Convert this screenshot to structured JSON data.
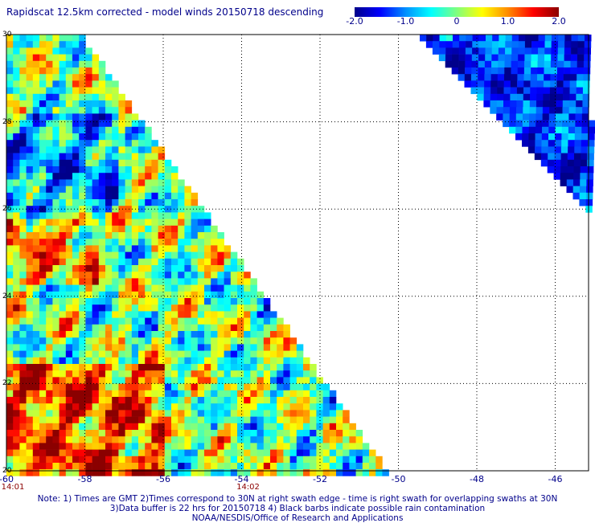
{
  "title": "Rapidscat 12.5km corrected - model winds 20150718 descending",
  "colorbar": {
    "min": -2.0,
    "max": 2.0,
    "tick_labels": [
      "-2.0",
      "-1.0",
      "0",
      "1.0",
      "2.0"
    ],
    "colors": [
      "#00008a",
      "#0000ff",
      "#0090ff",
      "#00ffff",
      "#7fff7f",
      "#ffff00",
      "#ff8c00",
      "#ff0000",
      "#8b0000"
    ]
  },
  "map": {
    "lat_range": [
      20,
      30
    ],
    "lon_range": [
      -60,
      -45
    ],
    "lat_labels": [
      "20",
      "22",
      "24",
      "26",
      "28",
      "30"
    ],
    "lon_labels": [
      "-60",
      "-58",
      "-56",
      "-54",
      "-52",
      "-50",
      "-48",
      "-46"
    ],
    "gridlines": "dotted",
    "swath_times": [
      "14:01",
      "14:02"
    ]
  },
  "notes": [
    "Note: 1) Times are GMT 2)Times correspond to 30N at right swath edge - time is right swath for overlapping swaths at 30N",
    "3)Data buffer is 22 hrs for 20150718 4) Black barbs indicate possible rain contamination",
    "NOAA/NESDIS/Office of Research and Applications"
  ]
}
